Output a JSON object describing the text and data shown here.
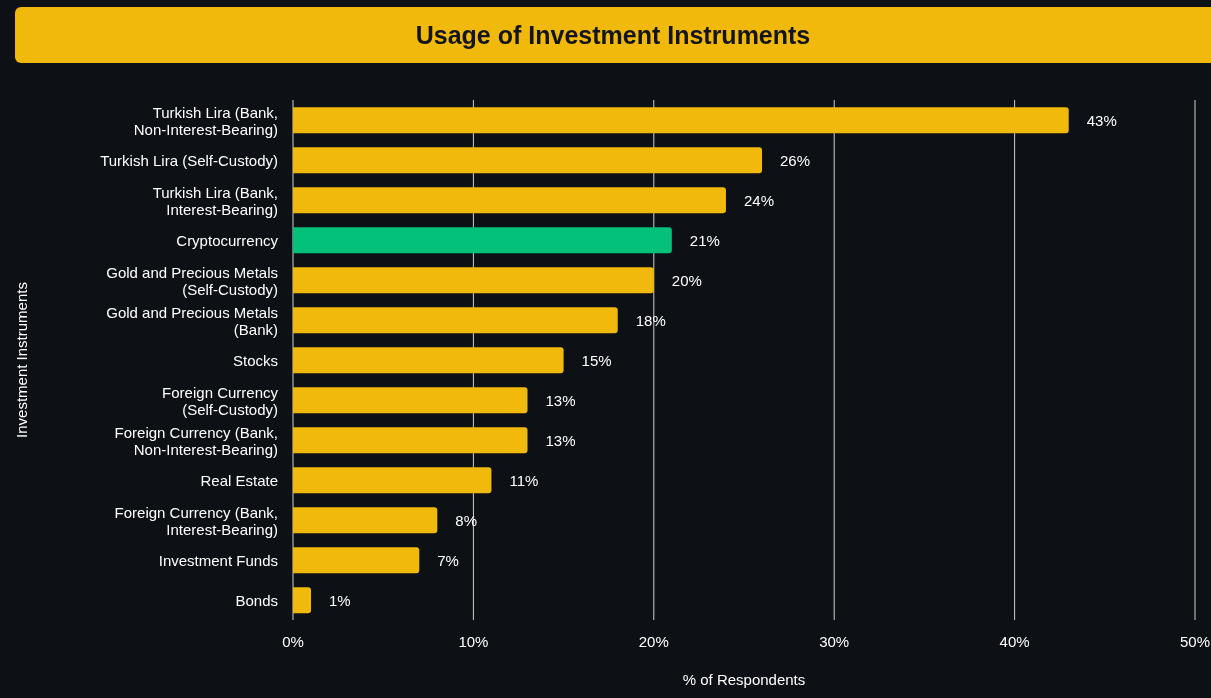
{
  "chart_data": {
    "type": "bar",
    "orientation": "horizontal",
    "title": "Usage of Investment Instruments",
    "xlabel": "% of Respondents",
    "ylabel": "Investment Instruments",
    "categories": [
      "Turkish Lira (Bank,\nNon-Interest-Bearing)",
      "Turkish Lira (Self-Custody)",
      "Turkish Lira (Bank,\nInterest-Bearing)",
      "Cryptocurrency",
      "Gold and Precious Metals\n(Self-Custody)",
      "Gold and Precious Metals\n(Bank)",
      "Stocks",
      "Foreign Currency\n(Self-Custody)",
      "Foreign Currency (Bank,\nNon-Interest-Bearing)",
      "Real Estate",
      "Foreign Currency (Bank,\nInterest-Bearing)",
      "Investment Funds",
      "Bonds"
    ],
    "values": [
      43,
      26,
      24,
      21,
      20,
      18,
      15,
      13,
      13,
      11,
      8,
      7,
      1
    ],
    "colors": [
      "#f0b90b",
      "#f0b90b",
      "#f0b90b",
      "#03c17a",
      "#f0b90b",
      "#f0b90b",
      "#f0b90b",
      "#f0b90b",
      "#f0b90b",
      "#f0b90b",
      "#f0b90b",
      "#f0b90b",
      "#f0b90b"
    ],
    "value_labels": [
      "43%",
      "26%",
      "24%",
      "21%",
      "20%",
      "18%",
      "15%",
      "13%",
      "13%",
      "11%",
      "8%",
      "7%",
      "1%"
    ],
    "xlim": [
      0,
      50
    ],
    "xticks": [
      {
        "value": 0,
        "label": "0%"
      },
      {
        "value": 10,
        "label": "10%"
      },
      {
        "value": 20,
        "label": "20%"
      },
      {
        "value": 30,
        "label": "30%"
      },
      {
        "value": 40,
        "label": "40%"
      },
      {
        "value": 50,
        "label": "50%"
      }
    ],
    "grid": "x"
  }
}
